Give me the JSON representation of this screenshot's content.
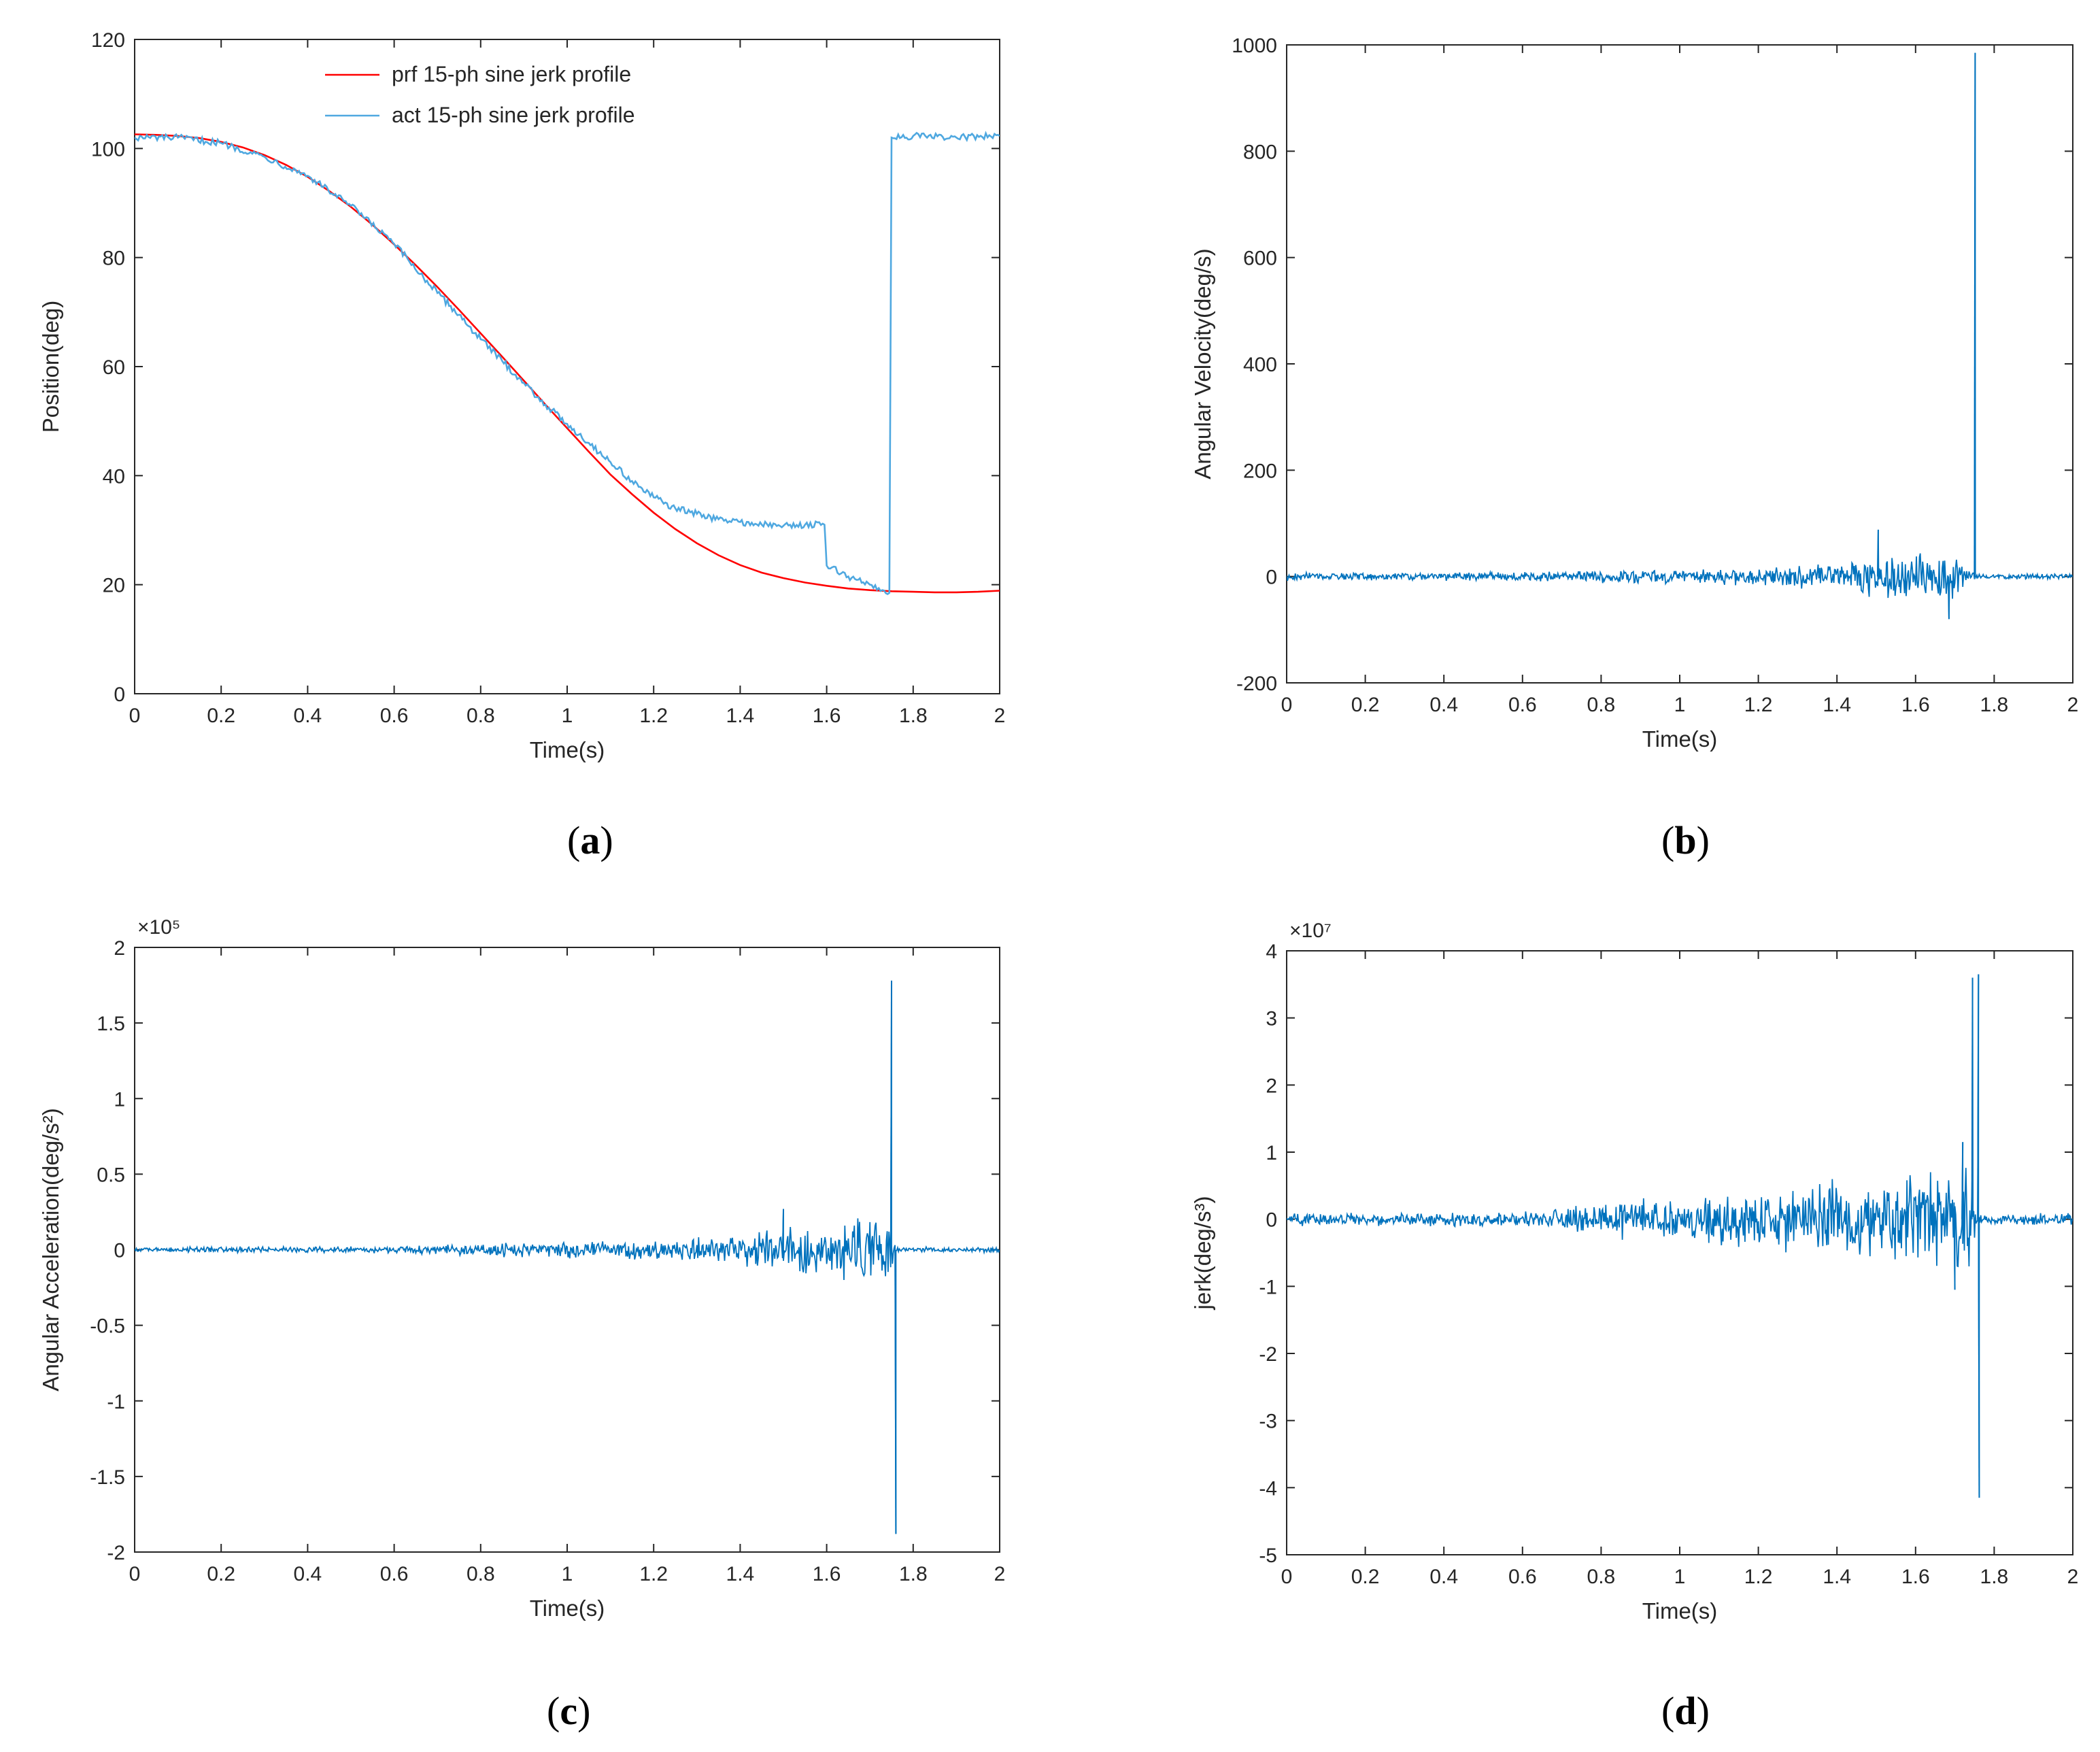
{
  "colors": {
    "prf": "#ff0000",
    "act": "#4fa8e0",
    "signal": "#0072bd",
    "axis": "#262626"
  },
  "chart_data": [
    {
      "id": "a",
      "type": "line",
      "caption_letter": "a",
      "xlabel": "Time(s)",
      "ylabel": "Position(deg)",
      "xlim": [
        0,
        2
      ],
      "ylim": [
        0,
        120
      ],
      "xticks": [
        0,
        0.2,
        0.4,
        0.6,
        0.8,
        1,
        1.2,
        1.4,
        1.6,
        1.8,
        2
      ],
      "yticks": [
        0,
        20,
        40,
        60,
        80,
        100,
        120
      ],
      "legend_position": "top-center",
      "series": [
        {
          "name": "prf 15-ph sine jerk profile",
          "color": "#ff0000",
          "x": [
            0,
            0.05,
            0.1,
            0.15,
            0.2,
            0.25,
            0.3,
            0.35,
            0.4,
            0.45,
            0.5,
            0.55,
            0.6,
            0.65,
            0.7,
            0.75,
            0.8,
            0.85,
            0.9,
            0.95,
            1.0,
            1.05,
            1.1,
            1.15,
            1.2,
            1.25,
            1.3,
            1.35,
            1.4,
            1.45,
            1.5,
            1.55,
            1.6,
            1.65,
            1.7,
            1.75,
            1.8,
            1.85,
            1.9,
            1.95,
            2.0
          ],
          "values": [
            102.6,
            102.5,
            102.3,
            101.9,
            101.2,
            100.2,
            98.8,
            97.0,
            94.8,
            92.2,
            89.3,
            86.0,
            82.4,
            78.6,
            74.6,
            70.4,
            66.1,
            61.8,
            57.4,
            53.0,
            48.7,
            44.4,
            40.2,
            36.6,
            33.2,
            30.2,
            27.6,
            25.4,
            23.6,
            22.2,
            21.2,
            20.4,
            19.8,
            19.3,
            19.0,
            18.8,
            18.7,
            18.6,
            18.6,
            18.7,
            18.9
          ]
        },
        {
          "name": "act 15-ph sine jerk profile",
          "color": "#4fa8e0",
          "x": [
            0,
            0.1,
            0.2,
            0.3,
            0.4,
            0.5,
            0.6,
            0.7,
            0.75,
            0.8,
            0.85,
            0.9,
            0.95,
            1.0,
            1.05,
            1.1,
            1.15,
            1.2,
            1.25,
            1.3,
            1.35,
            1.4,
            1.45,
            1.5,
            1.55,
            1.595,
            1.6,
            1.65,
            1.7,
            1.745,
            1.75,
            1.8,
            1.9,
            2.0
          ],
          "values": [
            102.0,
            102.0,
            101.0,
            98.5,
            95.0,
            89.5,
            82.5,
            73.5,
            69.5,
            65.0,
            61.0,
            57.0,
            53.0,
            49.5,
            46.0,
            42.5,
            39.0,
            36.0,
            34.0,
            33.0,
            32.0,
            31.5,
            31.0,
            30.8,
            31.0,
            31.0,
            23.5,
            21.5,
            20.0,
            18.5,
            102.0,
            102.3,
            102.0,
            102.3
          ]
        }
      ]
    },
    {
      "id": "b",
      "type": "line",
      "caption_letter": "b",
      "xlabel": "Time(s)",
      "ylabel": "Angular Velocity(deg/s)",
      "xlim": [
        0,
        2
      ],
      "ylim": [
        -200,
        1000
      ],
      "xticks": [
        0,
        0.2,
        0.4,
        0.6,
        0.8,
        1,
        1.2,
        1.4,
        1.6,
        1.8,
        2
      ],
      "yticks": [
        -200,
        0,
        200,
        400,
        600,
        800,
        1000
      ],
      "series": [
        {
          "name": "angular velocity",
          "color": "#0072bd",
          "noise_envelope": {
            "t": [
              0,
              0.6,
              0.8,
              1.0,
              1.2,
              1.4,
              1.5,
              1.6,
              1.7,
              1.75,
              1.76,
              2.0
            ],
            "amp": [
              8,
              10,
              14,
              15,
              18,
              30,
              45,
              48,
              55,
              10,
              6,
              6
            ]
          },
          "spikes": [
            {
              "x": 1.505,
              "y": 88
            },
            {
              "x": 1.685,
              "y": -80
            },
            {
              "x": 1.7515,
              "y": 985
            }
          ]
        }
      ]
    },
    {
      "id": "c",
      "type": "line",
      "caption_letter": "c",
      "xlabel": "Time(s)",
      "ylabel": "Angular Acceleration(deg/s²)",
      "multiplier": "×10⁵",
      "xlim": [
        0,
        2
      ],
      "ylim": [
        -2,
        2
      ],
      "xticks": [
        0,
        0.2,
        0.4,
        0.6,
        0.8,
        1,
        1.2,
        1.4,
        1.6,
        1.8,
        2
      ],
      "yticks": [
        -2,
        -1.5,
        -1,
        -0.5,
        0,
        0.5,
        1,
        1.5,
        2
      ],
      "series": [
        {
          "name": "angular acceleration",
          "color": "#0072bd",
          "noise_envelope": {
            "t": [
              0,
              0.6,
              0.8,
              1.0,
              1.2,
              1.4,
              1.5,
              1.6,
              1.7,
              1.745,
              1.76,
              2.0
            ],
            "amp": [
              0.02,
              0.025,
              0.05,
              0.06,
              0.07,
              0.12,
              0.17,
              0.2,
              0.24,
              0.28,
              0.02,
              0.02
            ]
          },
          "spikes": [
            {
              "x": 1.5,
              "y": 0.27
            },
            {
              "x": 1.75,
              "y": 1.78
            },
            {
              "x": 1.76,
              "y": -1.88
            }
          ]
        }
      ]
    },
    {
      "id": "d",
      "type": "line",
      "caption_letter": "d",
      "xlabel": "Time(s)",
      "ylabel": "jerk(deg/s³)",
      "multiplier": "×10⁷",
      "xlim": [
        0,
        2
      ],
      "ylim": [
        -5,
        4
      ],
      "xticks": [
        0,
        0.2,
        0.4,
        0.6,
        0.8,
        1,
        1.2,
        1.4,
        1.6,
        1.8,
        2
      ],
      "yticks": [
        -5,
        -4,
        -3,
        -2,
        -1,
        0,
        1,
        2,
        3,
        4
      ],
      "series": [
        {
          "name": "jerk",
          "color": "#0072bd",
          "noise_envelope": {
            "t": [
              0,
              0.6,
              0.8,
              1.0,
              1.2,
              1.4,
              1.5,
              1.6,
              1.7,
              1.745,
              1.76,
              2.0
            ],
            "amp": [
              0.1,
              0.12,
              0.3,
              0.38,
              0.45,
              0.65,
              0.7,
              0.75,
              0.9,
              1.0,
              0.1,
              0.1
            ]
          },
          "spikes": [
            {
              "x": 1.7,
              "y": -1.05
            },
            {
              "x": 1.72,
              "y": 1.15
            },
            {
              "x": 1.745,
              "y": 3.6
            },
            {
              "x": 1.76,
              "y": 3.65
            },
            {
              "x": 1.762,
              "y": -4.15
            }
          ]
        }
      ]
    }
  ]
}
